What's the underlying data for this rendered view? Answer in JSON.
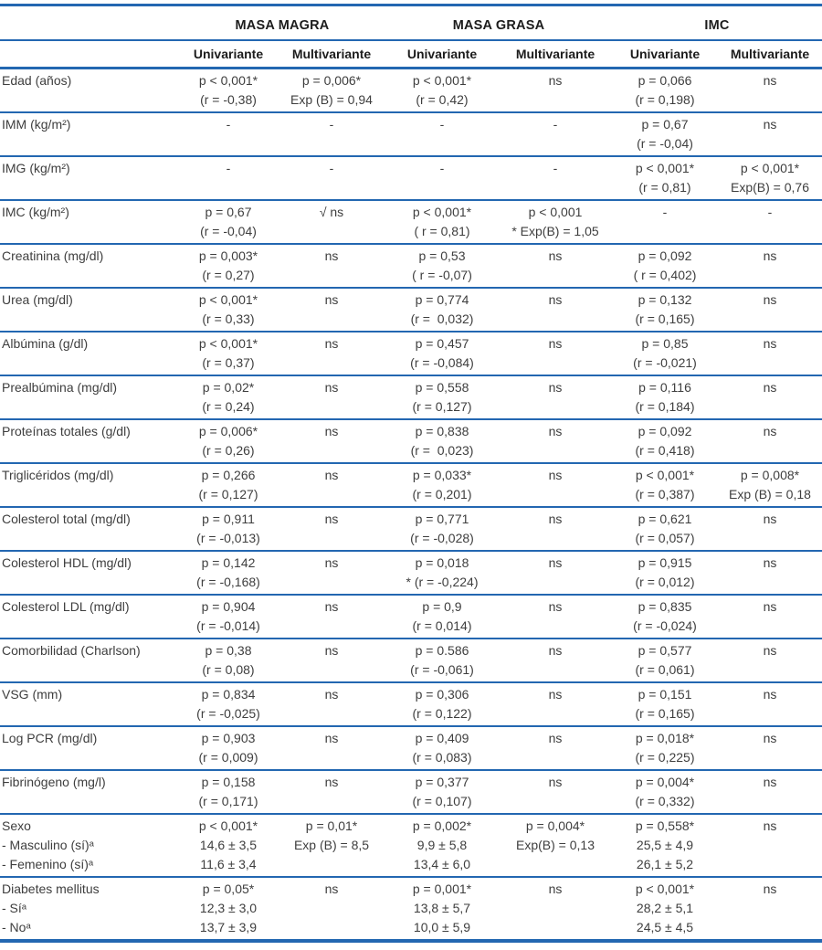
{
  "colors": {
    "accent_blue": "#2367b1",
    "body_text": "#3e3e3e",
    "header_text": "#1c1c1c"
  },
  "table": {
    "groups": [
      {
        "label": "MASA MAGRA"
      },
      {
        "label": "MASA GRASA"
      },
      {
        "label": "IMC"
      }
    ],
    "subheaders": [
      "Univariante",
      "Multivariante",
      "Univariante",
      "Multivariante",
      "Univariante",
      "Multivariante"
    ],
    "rows": [
      {
        "label": [
          "Edad (años)"
        ],
        "cells": [
          [
            "p < 0,001*",
            "(r = -0,38)"
          ],
          [
            "p = 0,006*",
            "Exp (B) = 0,94"
          ],
          [
            "p < 0,001*",
            "(r = 0,42)"
          ],
          [
            "ns"
          ],
          [
            "p = 0,066",
            "(r = 0,198)"
          ],
          [
            "ns"
          ]
        ]
      },
      {
        "label": [
          "IMM (kg/m²)"
        ],
        "cells": [
          [
            "-"
          ],
          [
            "-"
          ],
          [
            "-"
          ],
          [
            "-"
          ],
          [
            "p = 0,67",
            "(r = -0,04)"
          ],
          [
            "ns"
          ]
        ]
      },
      {
        "label": [
          "IMG (kg/m²)"
        ],
        "cells": [
          [
            "-"
          ],
          [
            "-"
          ],
          [
            "-"
          ],
          [
            "-"
          ],
          [
            "p < 0,001*",
            "(r = 0,81)"
          ],
          [
            "p < 0,001*",
            "Exp(B) = 0,76"
          ]
        ]
      },
      {
        "label": [
          "IMC (kg/m²)"
        ],
        "cells": [
          [
            "p = 0,67",
            "(r = -0,04)"
          ],
          [
            "√ ns"
          ],
          [
            "p < 0,001*",
            "( r = 0,81)"
          ],
          [
            "p < 0,001",
            "* Exp(B) = 1,05"
          ],
          [
            "-"
          ],
          [
            "-"
          ]
        ]
      },
      {
        "label": [
          "Creatinina (mg/dl)"
        ],
        "cells": [
          [
            "p = 0,003*",
            "(r = 0,27)"
          ],
          [
            "ns"
          ],
          [
            "p = 0,53",
            "( r = -0,07)"
          ],
          [
            "ns"
          ],
          [
            "p = 0,092",
            "( r = 0,402)"
          ],
          [
            "ns"
          ]
        ]
      },
      {
        "label": [
          "Urea (mg/dl)"
        ],
        "cells": [
          [
            "p < 0,001*",
            "(r = 0,33)"
          ],
          [
            "ns"
          ],
          [
            "p = 0,774",
            "(r =  0,032)"
          ],
          [
            "ns"
          ],
          [
            "p = 0,132",
            "(r = 0,165)"
          ],
          [
            "ns"
          ]
        ]
      },
      {
        "label": [
          "Albúmina (g/dl)"
        ],
        "cells": [
          [
            "p < 0,001*",
            "(r = 0,37)"
          ],
          [
            "ns"
          ],
          [
            "p = 0,457",
            "(r = -0,084)"
          ],
          [
            "ns"
          ],
          [
            "p = 0,85",
            "(r = -0,021)"
          ],
          [
            "ns"
          ]
        ]
      },
      {
        "label": [
          "Prealbúmina (mg/dl)"
        ],
        "cells": [
          [
            "p = 0,02*",
            "(r = 0,24)"
          ],
          [
            "ns"
          ],
          [
            "p = 0,558",
            "(r = 0,127)"
          ],
          [
            "ns"
          ],
          [
            "p = 0,116",
            "(r = 0,184)"
          ],
          [
            "ns"
          ]
        ]
      },
      {
        "label": [
          "Proteínas totales (g/dl)"
        ],
        "cells": [
          [
            "p = 0,006*",
            "(r = 0,26)"
          ],
          [
            "ns"
          ],
          [
            "p = 0,838",
            "(r =  0,023)"
          ],
          [
            "ns"
          ],
          [
            "p = 0,092",
            "(r = 0,418)"
          ],
          [
            "ns"
          ]
        ]
      },
      {
        "label": [
          "Triglicéridos (mg/dl)"
        ],
        "cells": [
          [
            "p = 0,266",
            "(r = 0,127)"
          ],
          [
            "ns"
          ],
          [
            "p = 0,033*",
            "(r = 0,201)"
          ],
          [
            "ns"
          ],
          [
            "p < 0,001*",
            "(r = 0,387)"
          ],
          [
            "p = 0,008*",
            "Exp (B) = 0,18"
          ]
        ]
      },
      {
        "label": [
          "Colesterol total (mg/dl)"
        ],
        "cells": [
          [
            "p = 0,911",
            "(r = -0,013)"
          ],
          [
            "ns"
          ],
          [
            "p = 0,771",
            "(r = -0,028)"
          ],
          [
            "ns"
          ],
          [
            "p = 0,621",
            "(r = 0,057)"
          ],
          [
            "ns"
          ]
        ]
      },
      {
        "label": [
          "Colesterol HDL (mg/dl)"
        ],
        "cells": [
          [
            "p = 0,142",
            "(r = -0,168)"
          ],
          [
            "ns"
          ],
          [
            "p = 0,018",
            "* (r = -0,224)"
          ],
          [
            "ns"
          ],
          [
            "p = 0,915",
            "(r = 0,012)"
          ],
          [
            "ns"
          ]
        ]
      },
      {
        "label": [
          "Colesterol LDL (mg/dl)"
        ],
        "cells": [
          [
            "p = 0,904",
            "(r = -0,014)"
          ],
          [
            "ns"
          ],
          [
            "p = 0,9",
            "(r = 0,014)"
          ],
          [
            "ns"
          ],
          [
            "p = 0,835",
            "(r = -0,024)"
          ],
          [
            "ns"
          ]
        ]
      },
      {
        "label": [
          "Comorbilidad (Charlson)"
        ],
        "cells": [
          [
            "p = 0,38",
            "(r = 0,08)"
          ],
          [
            "ns"
          ],
          [
            "p = 0.586",
            "(r = -0,061)"
          ],
          [
            "ns"
          ],
          [
            "p = 0,577",
            "(r = 0,061)"
          ],
          [
            "ns"
          ]
        ]
      },
      {
        "label": [
          "VSG (mm)"
        ],
        "cells": [
          [
            "p = 0,834",
            "(r = -0,025)"
          ],
          [
            "ns"
          ],
          [
            "p = 0,306",
            "(r = 0,122)"
          ],
          [
            "ns"
          ],
          [
            "p = 0,151",
            "(r = 0,165)"
          ],
          [
            "ns"
          ]
        ]
      },
      {
        "label": [
          "Log PCR (mg/dl)"
        ],
        "cells": [
          [
            "p = 0,903",
            "(r = 0,009)"
          ],
          [
            "ns"
          ],
          [
            "p = 0,409",
            "(r = 0,083)"
          ],
          [
            "ns"
          ],
          [
            "p = 0,018*",
            "(r = 0,225)"
          ],
          [
            "ns"
          ]
        ]
      },
      {
        "label": [
          "Fibrinógeno (mg/l)"
        ],
        "cells": [
          [
            "p = 0,158",
            "(r = 0,171)"
          ],
          [
            "ns"
          ],
          [
            "p = 0,377",
            "(r = 0,107)"
          ],
          [
            "ns"
          ],
          [
            "p = 0,004*",
            "(r = 0,332)"
          ],
          [
            "ns"
          ]
        ]
      },
      {
        "label": [
          "Sexo",
          "- Masculino (sí)ᵃ",
          "- Femenino (sí)ᵃ"
        ],
        "cells": [
          [
            "p < 0,001*",
            "14,6 ± 3,5",
            "11,6 ± 3,4"
          ],
          [
            "p = 0,01*",
            "Exp (B) = 8,5"
          ],
          [
            "p = 0,002*",
            "9,9 ± 5,8",
            "13,4 ± 6,0"
          ],
          [
            "p = 0,004*",
            "Exp(B) = 0,13"
          ],
          [
            "p = 0,558*",
            "25,5 ± 4,9",
            "26,1 ± 5,2"
          ],
          [
            "ns"
          ]
        ]
      },
      {
        "label": [
          "Diabetes mellitus",
          "- Síᵃ",
          "- Noᵃ"
        ],
        "cells": [
          [
            "p = 0,05*",
            "12,3 ± 3,0",
            "13,7 ± 3,9"
          ],
          [
            "ns"
          ],
          [
            "p = 0,001*",
            "13,8 ± 5,7",
            "10,0 ± 5,9"
          ],
          [
            "ns"
          ],
          [
            "p < 0,001*",
            "28,2 ± 5,1",
            "24,5 ± 4,5"
          ],
          [
            "ns"
          ]
        ]
      }
    ]
  }
}
